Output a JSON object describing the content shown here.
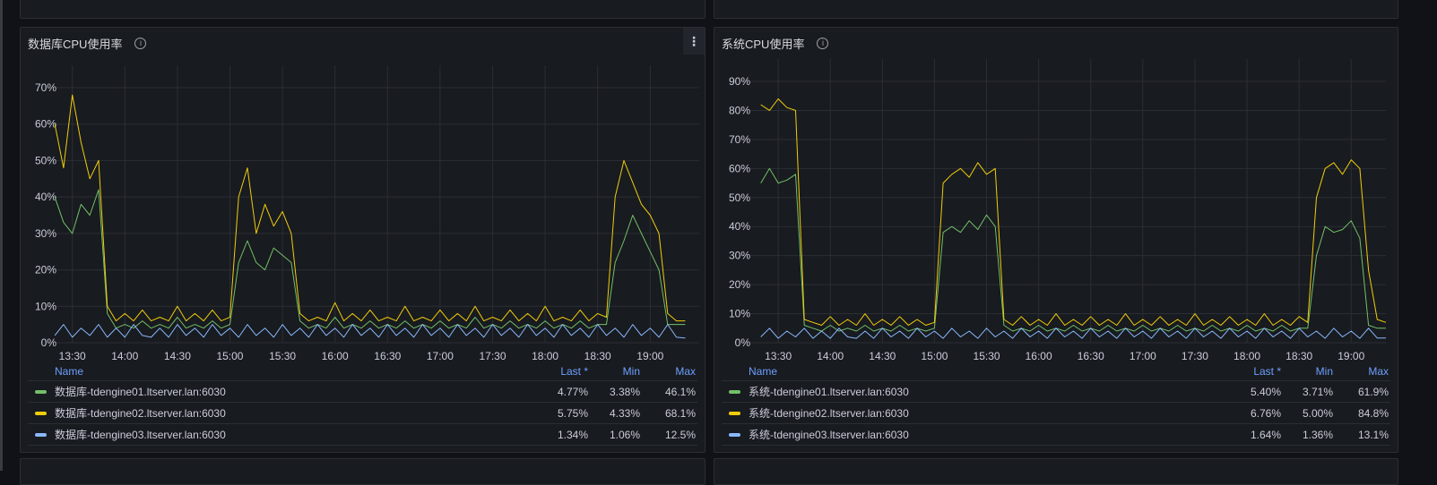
{
  "colors": {
    "series1": "#73bf69",
    "series2": "#f2cc0c",
    "series3": "#8ab8ff",
    "background": "#111217",
    "panel": "#181b1f",
    "legend_header": "#6e9fff"
  },
  "panels": [
    {
      "title": "数据库CPU使用率",
      "info_icon": "info-circle-icon",
      "menu_icon": "kebab-menu-icon",
      "legend": {
        "headers": {
          "name": "Name",
          "last": "Last *",
          "min": "Min",
          "max": "Max"
        },
        "rows": [
          {
            "name": "数据库-tdengine01.ltserver.lan:6030",
            "last": "4.77%",
            "min": "3.38%",
            "max": "46.1%"
          },
          {
            "name": "数据库-tdengine02.ltserver.lan:6030",
            "last": "5.75%",
            "min": "4.33%",
            "max": "68.1%"
          },
          {
            "name": "数据库-tdengine03.ltserver.lan:6030",
            "last": "1.34%",
            "min": "1.06%",
            "max": "12.5%"
          }
        ]
      }
    },
    {
      "title": "系统CPU使用率",
      "info_icon": "info-circle-icon",
      "legend": {
        "headers": {
          "name": "Name",
          "last": "Last *",
          "min": "Min",
          "max": "Max"
        },
        "rows": [
          {
            "name": "系统-tdengine01.ltserver.lan:6030",
            "last": "5.40%",
            "min": "3.71%",
            "max": "61.9%"
          },
          {
            "name": "系统-tdengine02.ltserver.lan:6030",
            "last": "6.76%",
            "min": "5.00%",
            "max": "84.8%"
          },
          {
            "name": "系统-tdengine03.ltserver.lan:6030",
            "last": "1.64%",
            "min": "1.36%",
            "max": "13.1%"
          }
        ]
      }
    }
  ],
  "chart_data": [
    {
      "type": "line",
      "title": "数据库CPU使用率",
      "grid": true,
      "legend_placement": "bottom",
      "xlim": [
        "13:23",
        "19:28"
      ],
      "ylim": [
        0,
        70
      ],
      "xticks": [
        "13:30",
        "14:00",
        "14:30",
        "15:00",
        "15:30",
        "16:00",
        "16:30",
        "17:00",
        "17:30",
        "18:00",
        "18:30",
        "19:00"
      ],
      "yticks": [
        "0%",
        "10%",
        "20%",
        "30%",
        "40%",
        "50%",
        "60%",
        "70%"
      ],
      "x": [
        "13:20",
        "13:25",
        "13:30",
        "13:35",
        "13:40",
        "13:45",
        "13:50",
        "13:55",
        "14:00",
        "14:05",
        "14:10",
        "14:15",
        "14:20",
        "14:25",
        "14:30",
        "14:35",
        "14:40",
        "14:45",
        "14:50",
        "14:55",
        "15:00",
        "15:05",
        "15:10",
        "15:15",
        "15:20",
        "15:25",
        "15:30",
        "15:35",
        "15:40",
        "15:45",
        "15:50",
        "15:55",
        "16:00",
        "16:05",
        "16:10",
        "16:15",
        "16:20",
        "16:25",
        "16:30",
        "16:35",
        "16:40",
        "16:45",
        "16:50",
        "16:55",
        "17:00",
        "17:05",
        "17:10",
        "17:15",
        "17:20",
        "17:25",
        "17:30",
        "17:35",
        "17:40",
        "17:45",
        "17:50",
        "17:55",
        "18:00",
        "18:05",
        "18:10",
        "18:15",
        "18:20",
        "18:25",
        "18:30",
        "18:35",
        "18:40",
        "18:45",
        "18:50",
        "18:55",
        "19:00",
        "19:05",
        "19:10",
        "19:15",
        "19:20"
      ],
      "series": [
        {
          "name": "数据库-tdengine01.ltserver.lan:6030",
          "color": "#73bf69",
          "values": [
            40,
            33,
            30,
            38,
            35,
            42,
            8,
            4,
            5,
            4,
            6,
            4,
            5,
            4,
            7,
            4,
            5,
            4,
            6,
            4,
            5,
            22,
            28,
            22,
            20,
            26,
            24,
            22,
            6,
            4,
            5,
            4,
            7,
            4,
            5,
            4,
            6,
            4,
            5,
            4,
            6,
            4,
            5,
            4,
            6,
            4,
            5,
            4,
            7,
            4,
            5,
            4,
            6,
            4,
            5,
            4,
            6,
            4,
            5,
            4,
            6,
            4,
            5,
            5,
            22,
            28,
            35,
            30,
            25,
            20,
            5,
            5,
            5
          ]
        },
        {
          "name": "数据库-tdengine02.ltserver.lan:6030",
          "color": "#f2cc0c",
          "values": [
            60,
            48,
            68,
            55,
            45,
            50,
            10,
            6,
            8,
            6,
            9,
            6,
            7,
            6,
            10,
            6,
            8,
            6,
            9,
            6,
            7,
            40,
            48,
            30,
            38,
            32,
            36,
            30,
            8,
            6,
            7,
            6,
            11,
            6,
            8,
            6,
            9,
            6,
            7,
            6,
            10,
            6,
            7,
            6,
            9,
            6,
            8,
            6,
            10,
            6,
            7,
            6,
            9,
            6,
            8,
            6,
            10,
            6,
            7,
            6,
            9,
            6,
            8,
            7,
            40,
            50,
            44,
            38,
            35,
            30,
            8,
            6,
            6
          ]
        },
        {
          "name": "数据库-tdengine03.ltserver.lan:6030",
          "color": "#8ab8ff",
          "values": [
            2,
            5,
            1.5,
            4,
            2,
            5,
            1.5,
            4,
            1.5,
            5,
            2,
            1.5,
            4,
            1.5,
            5,
            2,
            4,
            1.5,
            5,
            2,
            4,
            1.5,
            5,
            2,
            4,
            1.5,
            5,
            2,
            4,
            1.5,
            5,
            2,
            4,
            1.5,
            5,
            2,
            4,
            1.5,
            5,
            2,
            4,
            1.5,
            5,
            2,
            4,
            1.5,
            5,
            2,
            4,
            1.5,
            5,
            2,
            4,
            1.5,
            5,
            2,
            4,
            1.5,
            5,
            2,
            4,
            1.5,
            5,
            2,
            4,
            1.5,
            5,
            2,
            4,
            1.5,
            5,
            1.5,
            1.3
          ]
        }
      ]
    },
    {
      "type": "line",
      "title": "系统CPU使用率",
      "grid": true,
      "legend_placement": "bottom",
      "xlim": [
        "13:16",
        "19:20"
      ],
      "ylim": [
        0,
        90
      ],
      "xticks": [
        "13:30",
        "14:00",
        "14:30",
        "15:00",
        "15:30",
        "16:00",
        "16:30",
        "17:00",
        "17:30",
        "18:00",
        "18:30",
        "19:00"
      ],
      "yticks": [
        "0%",
        "10%",
        "20%",
        "30%",
        "40%",
        "50%",
        "60%",
        "70%",
        "80%",
        "90%"
      ],
      "x": [
        "13:20",
        "13:25",
        "13:30",
        "13:35",
        "13:40",
        "13:45",
        "13:50",
        "13:55",
        "14:00",
        "14:05",
        "14:10",
        "14:15",
        "14:20",
        "14:25",
        "14:30",
        "14:35",
        "14:40",
        "14:45",
        "14:50",
        "14:55",
        "15:00",
        "15:05",
        "15:10",
        "15:15",
        "15:20",
        "15:25",
        "15:30",
        "15:35",
        "15:40",
        "15:45",
        "15:50",
        "15:55",
        "16:00",
        "16:05",
        "16:10",
        "16:15",
        "16:20",
        "16:25",
        "16:30",
        "16:35",
        "16:40",
        "16:45",
        "16:50",
        "16:55",
        "17:00",
        "17:05",
        "17:10",
        "17:15",
        "17:20",
        "17:25",
        "17:30",
        "17:35",
        "17:40",
        "17:45",
        "17:50",
        "17:55",
        "18:00",
        "18:05",
        "18:10",
        "18:15",
        "18:20",
        "18:25",
        "18:30",
        "18:35",
        "18:40",
        "18:45",
        "18:50",
        "18:55",
        "19:00",
        "19:05",
        "19:10",
        "19:15",
        "19:20"
      ],
      "series": [
        {
          "name": "系统-tdengine01.ltserver.lan:6030",
          "color": "#73bf69",
          "values": [
            55,
            60,
            55,
            56,
            58,
            6,
            5,
            4,
            6,
            4,
            5,
            4,
            6,
            4,
            5,
            4,
            6,
            4,
            5,
            4,
            5,
            38,
            40,
            38,
            42,
            39,
            44,
            40,
            6,
            4,
            5,
            4,
            6,
            4,
            5,
            4,
            6,
            4,
            5,
            4,
            6,
            4,
            5,
            4,
            6,
            4,
            5,
            4,
            6,
            4,
            5,
            4,
            6,
            4,
            5,
            4,
            6,
            4,
            5,
            4,
            6,
            4,
            5,
            5,
            30,
            40,
            38,
            39,
            42,
            36,
            6,
            5,
            5
          ]
        },
        {
          "name": "系统-tdengine02.ltserver.lan:6030",
          "color": "#f2cc0c",
          "values": [
            82,
            80,
            84,
            81,
            80,
            8,
            7,
            6,
            9,
            6,
            8,
            6,
            10,
            6,
            8,
            6,
            9,
            6,
            8,
            6,
            7,
            55,
            58,
            60,
            57,
            62,
            58,
            60,
            8,
            6,
            9,
            6,
            8,
            6,
            10,
            6,
            8,
            6,
            9,
            6,
            8,
            6,
            10,
            6,
            8,
            6,
            9,
            6,
            8,
            6,
            10,
            6,
            8,
            6,
            9,
            6,
            8,
            6,
            10,
            6,
            8,
            6,
            9,
            7,
            50,
            60,
            62,
            58,
            63,
            60,
            25,
            8,
            7
          ]
        },
        {
          "name": "系统-tdengine03.ltserver.lan:6030",
          "color": "#8ab8ff",
          "values": [
            2,
            5,
            1.5,
            4,
            2,
            5,
            1.5,
            4,
            1.5,
            5,
            2,
            1.5,
            4,
            1.5,
            5,
            2,
            4,
            1.5,
            5,
            2,
            4,
            1.5,
            5,
            2,
            4,
            1.5,
            5,
            2,
            4,
            1.5,
            5,
            2,
            4,
            1.5,
            5,
            2,
            4,
            1.5,
            5,
            2,
            4,
            1.5,
            5,
            2,
            4,
            1.5,
            5,
            2,
            4,
            1.5,
            5,
            2,
            4,
            1.5,
            5,
            2,
            4,
            1.5,
            5,
            2,
            4,
            1.5,
            5,
            2,
            4,
            1.5,
            5,
            2,
            4,
            1.5,
            5,
            1.6,
            1.6
          ]
        }
      ]
    }
  ]
}
